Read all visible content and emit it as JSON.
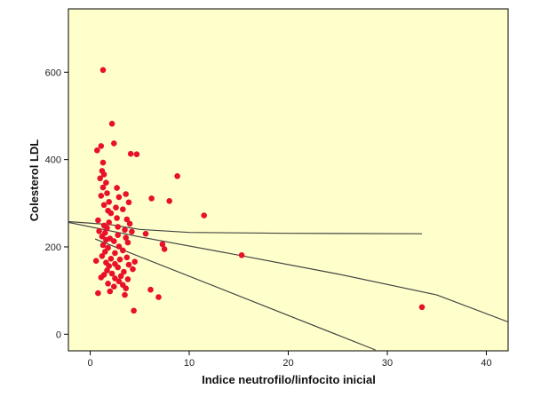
{
  "chart_data": {
    "type": "scatter",
    "xlabel": "Indice neutrofilo/linfocito inicial",
    "ylabel": "Colesterol LDL",
    "xlim": [
      -2.2,
      42.2
    ],
    "ylim": [
      -38,
      745
    ],
    "x_ticks": [
      "0",
      "10",
      "20",
      "30",
      "40"
    ],
    "y_ticks": [
      "0",
      "200",
      "400",
      "600"
    ],
    "grid": false,
    "legend": "none",
    "colors": {
      "plot_background": "#ffffcc",
      "point": "#e8102a",
      "line": "#444444",
      "axis": "#000000"
    },
    "points": [
      {
        "x": 1.3,
        "y": 605
      },
      {
        "x": 2.2,
        "y": 482
      },
      {
        "x": 2.4,
        "y": 437
      },
      {
        "x": 1.1,
        "y": 431
      },
      {
        "x": 0.7,
        "y": 421
      },
      {
        "x": 4.1,
        "y": 413
      },
      {
        "x": 4.7,
        "y": 412
      },
      {
        "x": 1.3,
        "y": 393
      },
      {
        "x": 1.2,
        "y": 374
      },
      {
        "x": 1.4,
        "y": 366
      },
      {
        "x": 8.8,
        "y": 362
      },
      {
        "x": 1.0,
        "y": 357
      },
      {
        "x": 1.6,
        "y": 347
      },
      {
        "x": 1.3,
        "y": 336
      },
      {
        "x": 2.7,
        "y": 335
      },
      {
        "x": 1.7,
        "y": 323
      },
      {
        "x": 3.6,
        "y": 321
      },
      {
        "x": 1.1,
        "y": 317
      },
      {
        "x": 2.9,
        "y": 314
      },
      {
        "x": 6.2,
        "y": 311
      },
      {
        "x": 8.0,
        "y": 305
      },
      {
        "x": 1.9,
        "y": 303
      },
      {
        "x": 3.9,
        "y": 302
      },
      {
        "x": 1.4,
        "y": 296
      },
      {
        "x": 2.6,
        "y": 290
      },
      {
        "x": 3.3,
        "y": 286
      },
      {
        "x": 1.8,
        "y": 283
      },
      {
        "x": 2.1,
        "y": 277
      },
      {
        "x": 11.5,
        "y": 272
      },
      {
        "x": 2.7,
        "y": 266
      },
      {
        "x": 3.7,
        "y": 263
      },
      {
        "x": 0.8,
        "y": 261
      },
      {
        "x": 1.9,
        "y": 256
      },
      {
        "x": 4.0,
        "y": 253
      },
      {
        "x": 1.4,
        "y": 249
      },
      {
        "x": 2.8,
        "y": 246
      },
      {
        "x": 1.7,
        "y": 243
      },
      {
        "x": 3.5,
        "y": 239
      },
      {
        "x": 0.9,
        "y": 236
      },
      {
        "x": 4.2,
        "y": 235
      },
      {
        "x": 1.5,
        "y": 232
      },
      {
        "x": 5.6,
        "y": 230
      },
      {
        "x": 2.8,
        "y": 227
      },
      {
        "x": 1.2,
        "y": 224
      },
      {
        "x": 3.6,
        "y": 221
      },
      {
        "x": 2.0,
        "y": 219
      },
      {
        "x": 1.6,
        "y": 216
      },
      {
        "x": 2.4,
        "y": 213
      },
      {
        "x": 3.8,
        "y": 210
      },
      {
        "x": 7.3,
        "y": 206
      },
      {
        "x": 1.3,
        "y": 204
      },
      {
        "x": 2.9,
        "y": 201
      },
      {
        "x": 1.8,
        "y": 198
      },
      {
        "x": 7.5,
        "y": 195
      },
      {
        "x": 3.3,
        "y": 192
      },
      {
        "x": 1.5,
        "y": 189
      },
      {
        "x": 2.5,
        "y": 186
      },
      {
        "x": 15.3,
        "y": 181
      },
      {
        "x": 1.2,
        "y": 179
      },
      {
        "x": 3.7,
        "y": 176
      },
      {
        "x": 2.1,
        "y": 173
      },
      {
        "x": 3.0,
        "y": 171
      },
      {
        "x": 0.6,
        "y": 168
      },
      {
        "x": 4.5,
        "y": 166
      },
      {
        "x": 1.6,
        "y": 164
      },
      {
        "x": 2.5,
        "y": 161
      },
      {
        "x": 3.9,
        "y": 159
      },
      {
        "x": 1.9,
        "y": 156
      },
      {
        "x": 2.8,
        "y": 153
      },
      {
        "x": 4.3,
        "y": 149
      },
      {
        "x": 1.7,
        "y": 146
      },
      {
        "x": 3.4,
        "y": 143
      },
      {
        "x": 2.2,
        "y": 139
      },
      {
        "x": 1.4,
        "y": 136
      },
      {
        "x": 3.1,
        "y": 133
      },
      {
        "x": 1.1,
        "y": 130
      },
      {
        "x": 2.5,
        "y": 128
      },
      {
        "x": 3.8,
        "y": 126
      },
      {
        "x": 2.9,
        "y": 121
      },
      {
        "x": 1.8,
        "y": 116
      },
      {
        "x": 3.3,
        "y": 113
      },
      {
        "x": 2.4,
        "y": 109
      },
      {
        "x": 3.6,
        "y": 105
      },
      {
        "x": 6.1,
        "y": 102
      },
      {
        "x": 2.0,
        "y": 98
      },
      {
        "x": 0.8,
        "y": 94
      },
      {
        "x": 3.5,
        "y": 90
      },
      {
        "x": 6.9,
        "y": 85
      },
      {
        "x": 4.4,
        "y": 54
      },
      {
        "x": 33.5,
        "y": 62
      }
    ],
    "lines": [
      {
        "role": "fit-line",
        "points": [
          [
            0.5,
            218
          ],
          [
            28.8,
            -36
          ]
        ]
      },
      {
        "role": "interval-upper",
        "points": [
          [
            -2.2,
            258
          ],
          [
            2,
            251
          ],
          [
            5,
            240
          ],
          [
            10,
            233
          ],
          [
            20,
            231
          ],
          [
            33.5,
            230
          ]
        ]
      },
      {
        "role": "interval-lower",
        "points": [
          [
            -2.2,
            256
          ],
          [
            5,
            223
          ],
          [
            15,
            181
          ],
          [
            25,
            138
          ],
          [
            35,
            90
          ],
          [
            42.2,
            28
          ]
        ]
      }
    ]
  }
}
